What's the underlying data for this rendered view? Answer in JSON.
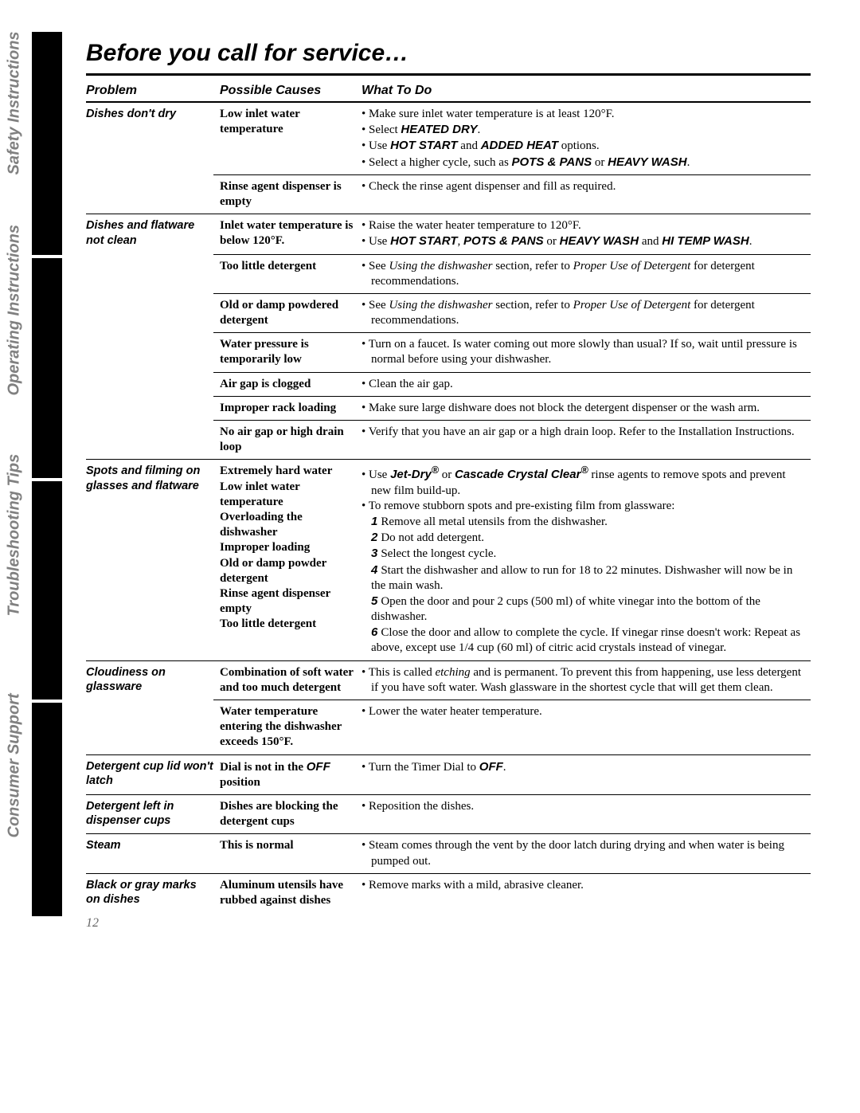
{
  "page_number": "12",
  "title": "Before you call for service…",
  "tabs": [
    "Safety Instructions",
    "Operating Instructions",
    "Troubleshooting Tips",
    "Consumer Support"
  ],
  "headers": {
    "col1": "Problem",
    "col2": "Possible Causes",
    "col3": "What To Do"
  },
  "sections": [
    {
      "problem": "Dishes don't dry",
      "rows": [
        {
          "cause": "Low inlet water temperature",
          "action_html": "<ul class='bullets'><li>Make sure inlet water temperature is at least 120°F.</li><li>Select <span class='bold-sans'>HEATED DRY</span>.</li><li>Use <span class='bold-sans'>HOT START</span> and <span class='bold-sans'>ADDED HEAT</span> options.</li><li>Select a higher cycle, such as <span class='bold-sans'>POTS &amp; PANS</span> or <span class='bold-sans'>HEAVY WASH</span>.</li></ul>"
        },
        {
          "cause": "Rinse agent dispenser is empty",
          "action_html": "<ul class='bullets'><li>Check the rinse agent dispenser and fill as required.</li></ul>"
        }
      ]
    },
    {
      "problem": "Dishes and flatware not clean",
      "rows": [
        {
          "cause": "Inlet water temperature is below 120°F.",
          "action_html": "<ul class='bullets'><li>Raise the water heater temperature to 120°F.</li><li>Use <span class='bold-sans'>HOT START</span>, <span class='bold-sans'>POTS &amp; PANS</span> or <span class='bold-sans'>HEAVY WASH</span> and <span class='bold-sans'>HI TEMP WASH</span>.</li></ul>"
        },
        {
          "cause": "Too little detergent",
          "action_html": "<ul class='bullets'><li>See <span class='italic'>Using the dishwasher</span> section, refer to <span class='italic'>Proper Use of Detergent</span> for detergent recommendations.</li></ul>"
        },
        {
          "cause": "Old or damp powdered detergent",
          "action_html": "<ul class='bullets'><li>See <span class='italic'>Using the dishwasher</span> section, refer to <span class='italic'>Proper Use of Detergent</span> for detergent recommendations.</li></ul>"
        },
        {
          "cause": "Water pressure is temporarily low",
          "action_html": "<ul class='bullets'><li>Turn on a faucet. Is water coming out more slowly than usual? If so, wait until pressure is normal before using your dishwasher.</li></ul>"
        },
        {
          "cause": "Air gap is clogged",
          "action_html": "<ul class='bullets'><li>Clean the air gap.</li></ul>"
        },
        {
          "cause": "Improper rack loading",
          "action_html": "<ul class='bullets'><li>Make sure large dishware does not block the detergent dispenser or the wash arm.</li></ul>"
        },
        {
          "cause": "No air gap or high drain loop",
          "action_html": "<ul class='bullets'><li>Verify that you have an air gap or a high drain loop. Refer to the Installation Instructions.</li></ul>"
        }
      ]
    },
    {
      "problem": "Spots and filming on glasses and flatware",
      "rows": [
        {
          "cause": "Extremely hard water<br>Low inlet water temperature<br>Overloading the dishwasher<br>Improper loading<br>Old or damp powder detergent<br>Rinse agent dispenser empty<br>Too little detergent",
          "action_html": "<ul class='bullets'><li>Use <span class='bold-sans'>Jet-Dry<sup>®</sup></span> or <span class='bold-sans'>Cascade Crystal Clear<sup>®</sup></span> rinse agents to remove spots and prevent new film build-up.</li><li>To remove stubborn spots and pre-existing film from glassware:</li></ul><div class='indent'><span class='num'>1</span>Remove all metal utensils from the dishwasher.</div><div class='indent'><span class='num'>2</span>Do not add detergent.</div><div class='indent'><span class='num'>3</span>Select the longest cycle.</div><div class='indent'><span class='num'>4</span>Start the dishwasher and allow to run for 18 to 22 minutes. Dishwasher will now be in the main wash.</div><div class='indent'><span class='num'>5</span>Open the door and pour 2 cups (500 ml) of white vinegar into the bottom of the dishwasher.</div><div class='indent'><span class='num'>6</span>Close the door and allow to complete the cycle. If vinegar rinse doesn't work: Repeat as above, except use 1/4 cup (60 ml) of citric acid crystals instead of vinegar.</div>"
        }
      ]
    },
    {
      "problem": "Cloudiness on glassware",
      "rows": [
        {
          "cause": "Combination of soft water and too much detergent",
          "action_html": "<ul class='bullets'><li>This is called <span class='italic'>etching</span> and is permanent. To prevent this from happening, use less detergent if you have soft water. Wash glassware in the shortest cycle that will get them clean.</li></ul>"
        },
        {
          "cause": "Water temperature entering the dishwasher exceeds 150°F.",
          "action_html": "<ul class='bullets'><li>Lower the water heater temperature.</li></ul>"
        }
      ]
    },
    {
      "problem": "Detergent cup lid won't latch",
      "rows": [
        {
          "cause": "Dial is not in the <span class='bold-sans'>OFF</span> position",
          "action_html": "<ul class='bullets'><li>Turn the Timer Dial to <span class='bold-sans'>OFF</span>.</li></ul>"
        }
      ]
    },
    {
      "problem": "Detergent left in dispenser cups",
      "rows": [
        {
          "cause": "Dishes are blocking the detergent cups",
          "action_html": "<ul class='bullets'><li>Reposition the dishes.</li></ul>"
        }
      ]
    },
    {
      "problem": "Steam",
      "rows": [
        {
          "cause": "This is normal",
          "action_html": "<ul class='bullets'><li>Steam comes through the vent by the door latch during drying and when water is being pumped out.</li></ul>"
        }
      ]
    },
    {
      "problem": "Black or gray marks on dishes",
      "rows": [
        {
          "cause": "Aluminum utensils have rubbed against dishes",
          "action_html": "<ul class='bullets'><li>Remove marks with a mild, abrasive cleaner.</li></ul>"
        }
      ]
    }
  ]
}
